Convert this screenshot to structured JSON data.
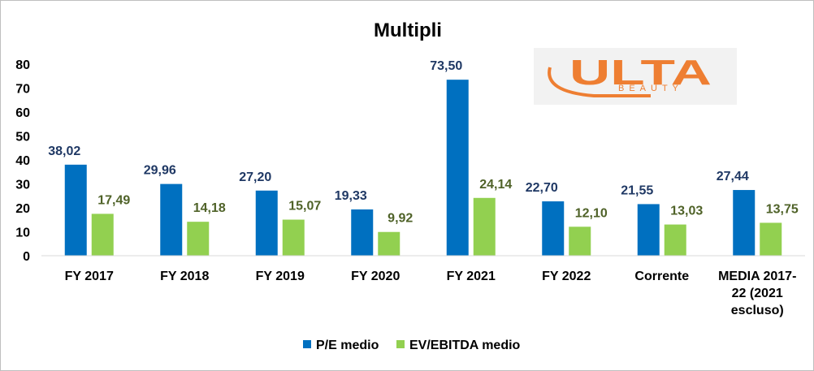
{
  "chart_data": {
    "type": "bar",
    "title": "Multipli",
    "categories": [
      [
        "FY 2017"
      ],
      [
        "FY 2018"
      ],
      [
        "FY 2019"
      ],
      [
        "FY 2020"
      ],
      [
        "FY 2021"
      ],
      [
        "FY 2022"
      ],
      [
        "Corrente"
      ],
      [
        "MEDIA 2017-",
        "22 (2021",
        "escluso)"
      ]
    ],
    "series": [
      {
        "name": "P/E medio",
        "color": "#0070c0",
        "label_color": "#1f3864",
        "values": [
          38.02,
          29.96,
          27.2,
          19.33,
          73.5,
          22.7,
          21.55,
          27.44
        ],
        "labels": [
          "38,02",
          "29,96",
          "27,20",
          "19,33",
          "73,50",
          "22,70",
          "21,55",
          "27,44"
        ]
      },
      {
        "name": "EV/EBITDA medio",
        "color": "#92d050",
        "label_color": "#4f6228",
        "values": [
          17.49,
          14.18,
          15.07,
          9.92,
          24.14,
          12.1,
          13.03,
          13.75
        ],
        "labels": [
          "17,49",
          "14,18",
          "15,07",
          "9,92",
          "24,14",
          "12,10",
          "13,03",
          "13,75"
        ]
      }
    ],
    "ylim": [
      0,
      80
    ],
    "yticks": [
      "0",
      "10",
      "20",
      "30",
      "40",
      "50",
      "60",
      "70",
      "80"
    ],
    "grid": false,
    "legend": "bottom",
    "xlabel": "",
    "ylabel": ""
  },
  "logo": {
    "text": "ULTA",
    "subtext": "BEAUTY",
    "color": "#ee7e32"
  }
}
